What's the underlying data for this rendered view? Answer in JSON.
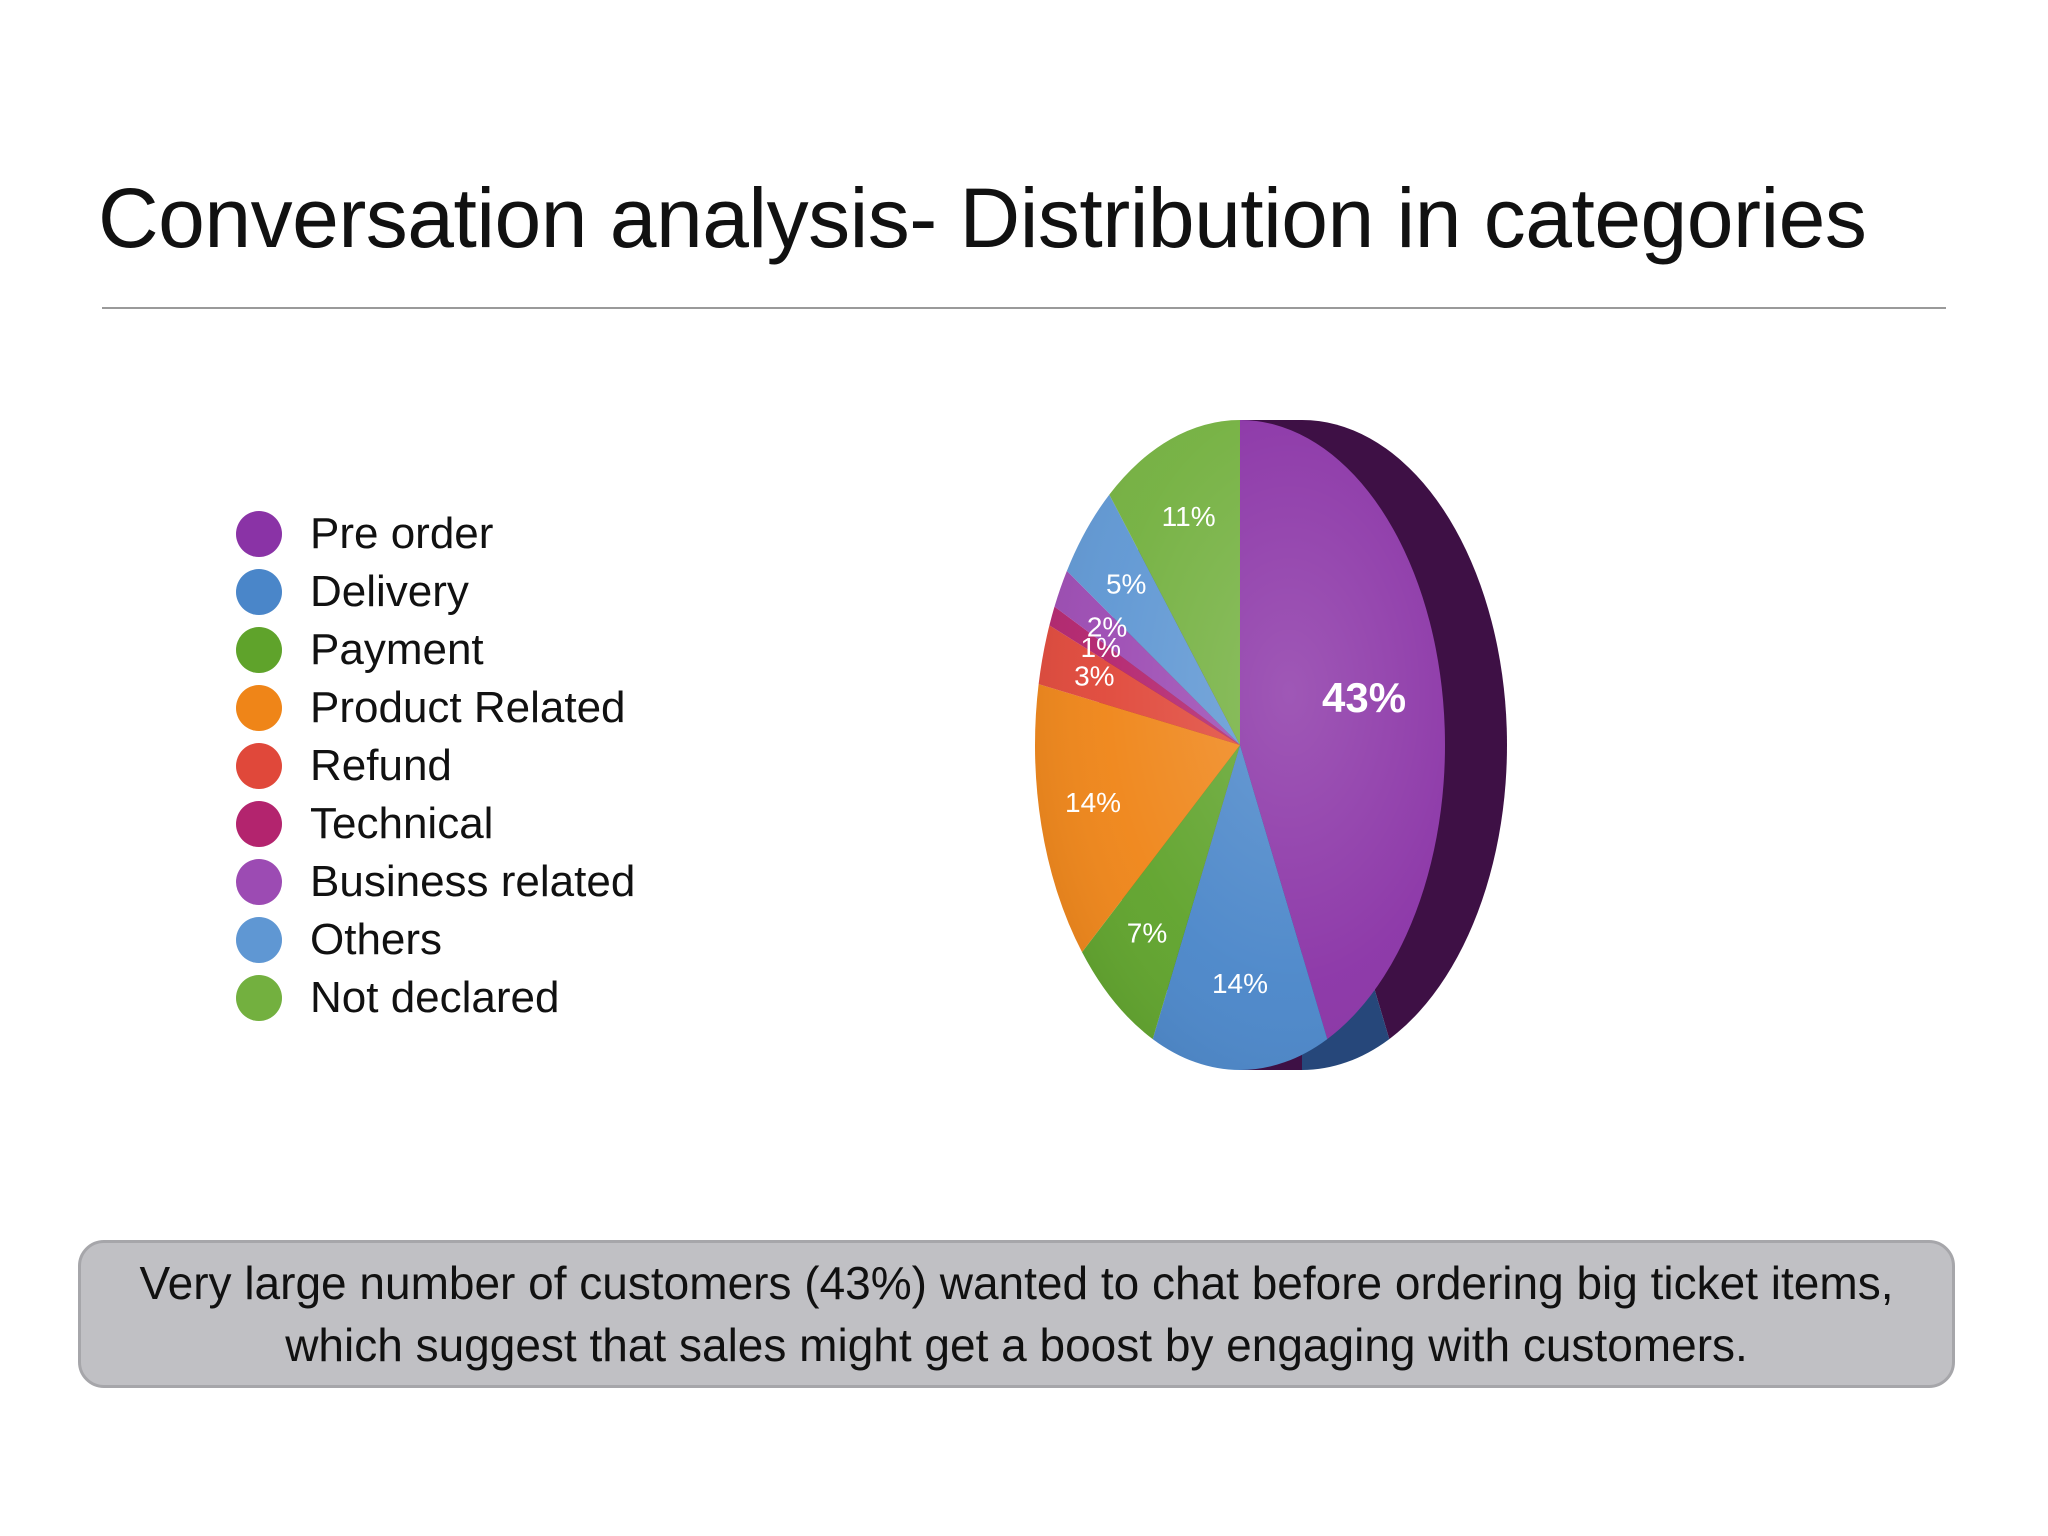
{
  "slide": {
    "title": "Conversation analysis- Distribution in categories",
    "callout": "Very large number of customers (43%) wanted to chat before ordering big ticket items, which suggest that sales might get a boost by engaging with customers."
  },
  "chart_data": {
    "type": "pie",
    "title": "",
    "legend_position": "left",
    "start_angle_deg": 0,
    "direction": "clockwise",
    "series": [
      {
        "name": "Pre order",
        "value": 43,
        "label": "43%",
        "color": "#8a33a6",
        "side_color": "#3e1045"
      },
      {
        "name": "Delivery",
        "value": 14,
        "label": "14%",
        "color": "#4a86c9",
        "side_color": "#26477a"
      },
      {
        "name": "Payment",
        "value": 7,
        "label": "7%",
        "color": "#5fa32b",
        "side_color": "#345c17"
      },
      {
        "name": "Product Related",
        "value": 14,
        "label": "14%",
        "color": "#ef8518",
        "side_color": "#8a4a0c"
      },
      {
        "name": "Refund",
        "value": 3,
        "label": "3%",
        "color": "#e0483a",
        "side_color": "#80261e"
      },
      {
        "name": "Technical",
        "value": 1,
        "label": "1%",
        "color": "#b3246e",
        "side_color": "#5e113a"
      },
      {
        "name": "Business related",
        "value": 2,
        "label": "2%",
        "color": "#9c4bb3",
        "side_color": "#4d2159"
      },
      {
        "name": "Others",
        "value": 5,
        "label": "5%",
        "color": "#5f97d3",
        "side_color": "#2f507a"
      },
      {
        "name": "Not declared",
        "value": 11,
        "label": "11%",
        "color": "#73b03f",
        "side_color": "#3d611f"
      }
    ]
  }
}
